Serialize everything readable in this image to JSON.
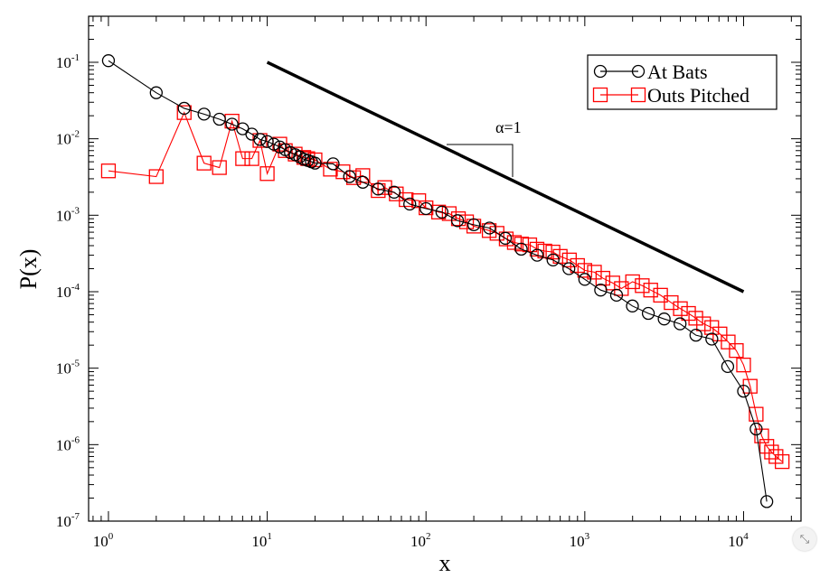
{
  "chart_data": {
    "type": "scatter",
    "xlabel": "x",
    "ylabel": "P(x)",
    "x_scale": "log",
    "y_scale": "log",
    "xlim": [
      0.75,
      23000
    ],
    "ylim": [
      1e-07,
      0.4
    ],
    "x_ticks": [
      {
        "value": 1,
        "base": "10",
        "exp": "0"
      },
      {
        "value": 10,
        "base": "10",
        "exp": "1"
      },
      {
        "value": 100,
        "base": "10",
        "exp": "2"
      },
      {
        "value": 1000,
        "base": "10",
        "exp": "3"
      },
      {
        "value": 10000,
        "base": "10",
        "exp": "4"
      }
    ],
    "y_ticks": [
      {
        "value": 1e-07,
        "base": "10",
        "exp": "-7"
      },
      {
        "value": 1e-06,
        "base": "10",
        "exp": "-6"
      },
      {
        "value": 1e-05,
        "base": "10",
        "exp": "-5"
      },
      {
        "value": 0.0001,
        "base": "10",
        "exp": "-4"
      },
      {
        "value": 0.001,
        "base": "10",
        "exp": "-3"
      },
      {
        "value": 0.01,
        "base": "10",
        "exp": "-2"
      },
      {
        "value": 0.1,
        "base": "10",
        "exp": "-1"
      }
    ],
    "legend_position": "top-right",
    "series": [
      {
        "name": "At Bats",
        "color": "#000000",
        "marker": "circle",
        "x": [
          1,
          2,
          3,
          4,
          5,
          6,
          7,
          8,
          9,
          10,
          11,
          12,
          13,
          14,
          15,
          16,
          17,
          18,
          19,
          20,
          26,
          33,
          40,
          50,
          63,
          79,
          100,
          126,
          158,
          200,
          251,
          316,
          398,
          501,
          631,
          794,
          1000,
          1259,
          1585,
          1995,
          2512,
          3162,
          3981,
          5012,
          6310,
          7943,
          10000,
          12000,
          14000
        ],
        "y": [
          0.105,
          0.04,
          0.025,
          0.021,
          0.018,
          0.0155,
          0.0135,
          0.0115,
          0.0098,
          0.0092,
          0.0085,
          0.0078,
          0.0072,
          0.0066,
          0.0062,
          0.0058,
          0.0054,
          0.0052,
          0.005,
          0.0048,
          0.0047,
          0.0032,
          0.0027,
          0.0022,
          0.002,
          0.0014,
          0.00122,
          0.0011,
          0.00085,
          0.00075,
          0.00068,
          0.0005,
          0.00036,
          0.0003,
          0.00026,
          0.0002,
          0.000145,
          0.000105,
          9e-05,
          6.5e-05,
          5.2e-05,
          4.4e-05,
          3.8e-05,
          2.7e-05,
          2.4e-05,
          1.05e-05,
          5e-06,
          1.6e-06,
          1.8e-07
        ]
      },
      {
        "name": "Outs Pitched",
        "color": "#ff0000",
        "marker": "square",
        "x": [
          1,
          2,
          3,
          4,
          5,
          6,
          7,
          8,
          9,
          10,
          12,
          13,
          15,
          17,
          18,
          20,
          25,
          30,
          35,
          40,
          50,
          55,
          65,
          75,
          90,
          100,
          120,
          140,
          160,
          180,
          200,
          250,
          280,
          320,
          360,
          400,
          450,
          500,
          560,
          630,
          700,
          800,
          900,
          1000,
          1150,
          1300,
          1500,
          1700,
          2000,
          2300,
          2600,
          3000,
          3500,
          4000,
          4500,
          5000,
          5600,
          6300,
          7100,
          8000,
          9000,
          10000,
          11000,
          12000,
          13000,
          14000,
          15000,
          16000,
          17500
        ],
        "y": [
          0.0038,
          0.0032,
          0.022,
          0.0048,
          0.0042,
          0.017,
          0.0055,
          0.0055,
          0.0095,
          0.0035,
          0.0085,
          0.007,
          0.0063,
          0.0057,
          0.0055,
          0.0053,
          0.004,
          0.0037,
          0.0031,
          0.0033,
          0.0021,
          0.0023,
          0.0019,
          0.0016,
          0.00155,
          0.00125,
          0.0011,
          0.00105,
          0.0009,
          0.00082,
          0.00072,
          0.00063,
          0.00058,
          0.00049,
          0.00044,
          0.00042,
          0.00041,
          0.00036,
          0.00034,
          0.00033,
          0.00029,
          0.00026,
          0.00022,
          0.00019,
          0.00018,
          0.00015,
          0.00013,
          0.00011,
          0.000135,
          0.00012,
          0.000105,
          9e-05,
          7.2e-05,
          6e-05,
          5.2e-05,
          4.5e-05,
          3.8e-05,
          3.4e-05,
          2.8e-05,
          2.2e-05,
          1.7e-05,
          1.1e-05,
          5.8e-06,
          2.5e-06,
          1.3e-06,
          9.5e-07,
          8e-07,
          7e-07,
          6e-07
        ]
      }
    ],
    "annotations": [
      {
        "type": "reference_line",
        "label": "α=1",
        "x": [
          10,
          10000
        ],
        "y": [
          0.1,
          0.0001
        ]
      }
    ]
  }
}
